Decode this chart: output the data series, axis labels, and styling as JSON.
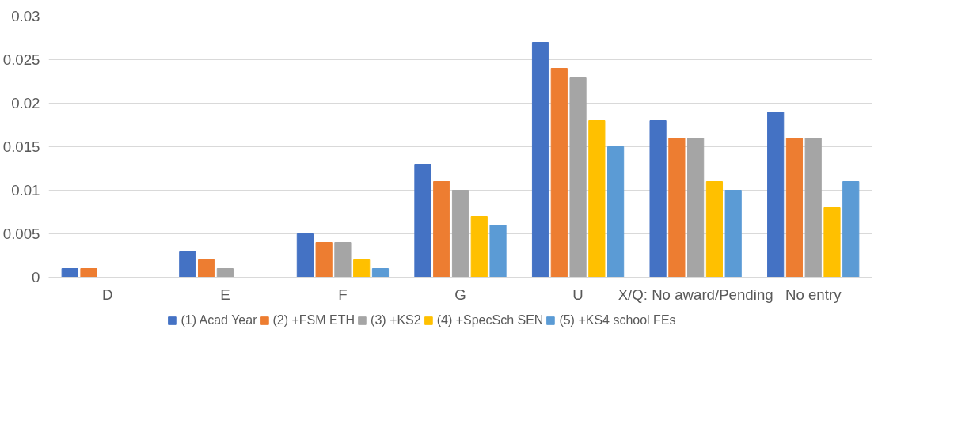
{
  "chart_data": {
    "type": "bar",
    "categories": [
      "D",
      "E",
      "F",
      "G",
      "U",
      "X/Q: No award/Pending",
      "No entry"
    ],
    "series": [
      {
        "name": "(1) Acad Year",
        "color": "#4472c4",
        "values": [
          0.001,
          0.003,
          0.005,
          0.013,
          0.027,
          0.018,
          0.019
        ]
      },
      {
        "name": "(2) +FSM ETH",
        "color": "#ed7d31",
        "values": [
          0.001,
          0.002,
          0.004,
          0.011,
          0.024,
          0.016,
          0.016
        ]
      },
      {
        "name": "(3) +KS2",
        "color": "#a5a5a5",
        "values": [
          0,
          0.001,
          0.004,
          0.01,
          0.023,
          0.016,
          0.016
        ]
      },
      {
        "name": "(4) +SpecSch SEN",
        "color": "#ffc000",
        "values": [
          0,
          0,
          0.002,
          0.007,
          0.018,
          0.011,
          0.008
        ]
      },
      {
        "name": "(5) +KS4 school FEs",
        "color": "#5b9bd5",
        "values": [
          0,
          0,
          0.001,
          0.006,
          0.015,
          0.01,
          0.011
        ]
      }
    ],
    "ylim": [
      0,
      0.03
    ],
    "yticks": [
      0,
      0.005,
      0.01,
      0.015,
      0.02,
      0.025,
      0.03
    ],
    "grid": "y",
    "legend": "bottom"
  }
}
